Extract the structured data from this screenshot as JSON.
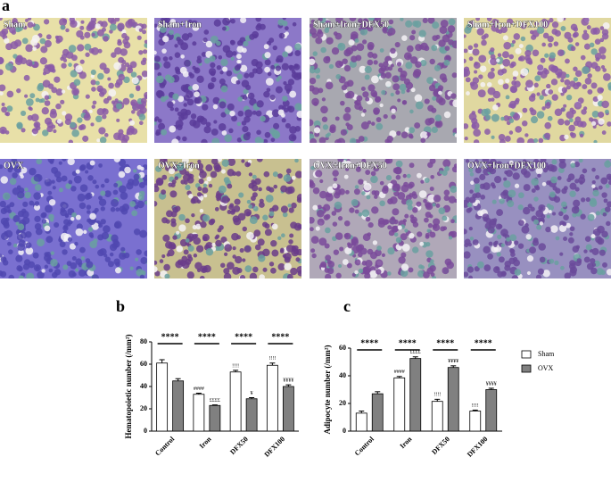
{
  "figure": {
    "panel_labels": [
      "a",
      "b",
      "c"
    ],
    "images": [
      "Sham",
      "Sham+Iron",
      "Sham+Iron+DFX50",
      "Sham+Iron+DFX100",
      "OVX",
      "OVX+Iron",
      "OVX+Iron+DFX50",
      "OVX+Iron+DFX100"
    ]
  },
  "chart_data": [
    {
      "type": "bar",
      "ylabel": "Hematopoietic number (/mm²)",
      "categories": [
        "Control",
        "Iron",
        "DFX50",
        "DFX100"
      ],
      "ylim": [
        0,
        80
      ],
      "yticks": [
        0,
        20,
        40,
        60,
        80
      ],
      "brackets": [
        "****",
        "****",
        "****",
        "****"
      ],
      "legend": "none",
      "series": [
        {
          "color": "#ffffff",
          "values": [
            61,
            33,
            53,
            59
          ],
          "errors": [
            3,
            1,
            1.5,
            2
          ],
          "annotations": [
            null,
            "####",
            "!!!!",
            "!!!!"
          ]
        },
        {
          "color": "#808080",
          "values": [
            45,
            23,
            29,
            40
          ],
          "errors": [
            2,
            0.5,
            1,
            1.5
          ],
          "annotations": [
            null,
            "££££",
            "¥",
            "¥¥¥¥"
          ]
        }
      ]
    },
    {
      "type": "bar",
      "ylabel": "Adipocyte number (/mm²)",
      "categories": [
        "Control",
        "Iron",
        "DFX50",
        "DFX100"
      ],
      "ylim": [
        0,
        60
      ],
      "yticks": [
        0,
        20,
        40,
        60
      ],
      "brackets": [
        "****",
        "****",
        "****",
        "****"
      ],
      "legend": "right",
      "series": [
        {
          "name": "Sham",
          "color": "#ffffff",
          "values": [
            13,
            38.5,
            21.5,
            14.5
          ],
          "errors": [
            1.5,
            1,
            1.5,
            0.7
          ],
          "annotations": [
            null,
            "####",
            "!!!!",
            "!!!!"
          ]
        },
        {
          "name": "OVX",
          "color": "#808080",
          "values": [
            27,
            52.5,
            46,
            30
          ],
          "errors": [
            1.5,
            1.2,
            1.2,
            1
          ],
          "annotations": [
            null,
            "££££",
            "¥¥¥¥",
            "¥¥¥¥"
          ]
        }
      ]
    }
  ]
}
